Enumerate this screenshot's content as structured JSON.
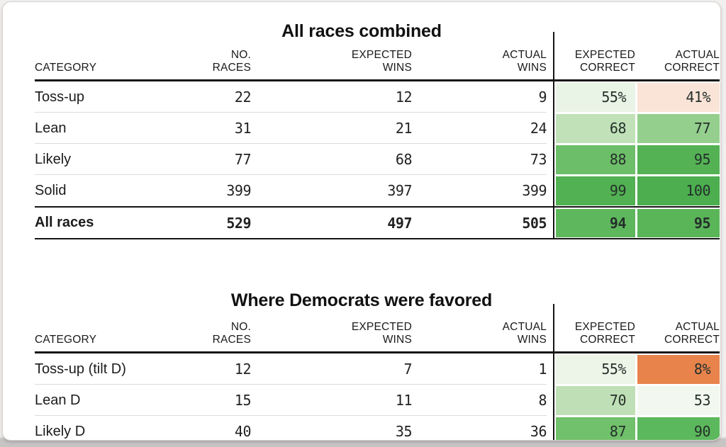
{
  "page": {
    "outer_background": "#c7c5c4",
    "card_background": "#ffffff",
    "rule_color": "#151515",
    "separator_color": "#dcdcdc"
  },
  "chart_data": [
    {
      "type": "table",
      "title": "All races combined",
      "headers": {
        "category": "CATEGORY",
        "races": "NO.\nRACES",
        "expected_wins": "EXPECTED\nWINS",
        "actual_wins": "ACTUAL\nWINS",
        "expected_correct": "EXPECTED\nCORRECT",
        "actual_correct": "ACTUAL\nCORRECT"
      },
      "rows": [
        {
          "category": "Toss-up",
          "races": "22",
          "expected_wins": "12",
          "actual_wins": "9",
          "expected_correct": "55%",
          "expected_correct_color": "#eaf4e6",
          "actual_correct": "41%",
          "actual_correct_color": "#fae4d8",
          "total": false
        },
        {
          "category": "Lean",
          "races": "31",
          "expected_wins": "21",
          "actual_wins": "24",
          "expected_correct": "68",
          "expected_correct_color": "#c1e2b9",
          "actual_correct": "77",
          "actual_correct_color": "#94cf8d",
          "total": false
        },
        {
          "category": "Likely",
          "races": "77",
          "expected_wins": "68",
          "actual_wins": "73",
          "expected_correct": "88",
          "expected_correct_color": "#6dbe68",
          "actual_correct": "95",
          "actual_correct_color": "#54b254",
          "total": false
        },
        {
          "category": "Solid",
          "races": "399",
          "expected_wins": "397",
          "actual_wins": "399",
          "expected_correct": "99",
          "expected_correct_color": "#52b152",
          "actual_correct": "100",
          "actual_correct_color": "#4cae4f",
          "total": false
        },
        {
          "category": "All races",
          "races": "529",
          "expected_wins": "497",
          "actual_wins": "505",
          "expected_correct": "94",
          "expected_correct_color": "#5fb75d",
          "actual_correct": "95",
          "actual_correct_color": "#5ab559",
          "total": true
        }
      ]
    },
    {
      "type": "table",
      "title": "Where Democrats were favored",
      "headers": {
        "category": "CATEGORY",
        "races": "NO.\nRACES",
        "expected_wins": "EXPECTED\nWINS",
        "actual_wins": "ACTUAL\nWINS",
        "expected_correct": "EXPECTED\nCORRECT",
        "actual_correct": "ACTUAL\nCORRECT"
      },
      "rows": [
        {
          "category": "Toss-up (tilt D)",
          "races": "12",
          "expected_wins": "7",
          "actual_wins": "1",
          "expected_correct": "55%",
          "expected_correct_color": "#ecf5e8",
          "actual_correct": "8%",
          "actual_correct_color": "#e8834c",
          "total": false
        },
        {
          "category": "Lean D",
          "races": "15",
          "expected_wins": "11",
          "actual_wins": "8",
          "expected_correct": "70",
          "expected_correct_color": "#bfe0b6",
          "actual_correct": "53",
          "actual_correct_color": "#f2f8ef",
          "total": false
        },
        {
          "category": "Likely D",
          "races": "40",
          "expected_wins": "35",
          "actual_wins": "36",
          "expected_correct": "87",
          "expected_correct_color": "#71c06b",
          "actual_correct": "90",
          "actual_correct_color": "#5cb85c",
          "total": false
        }
      ]
    }
  ]
}
